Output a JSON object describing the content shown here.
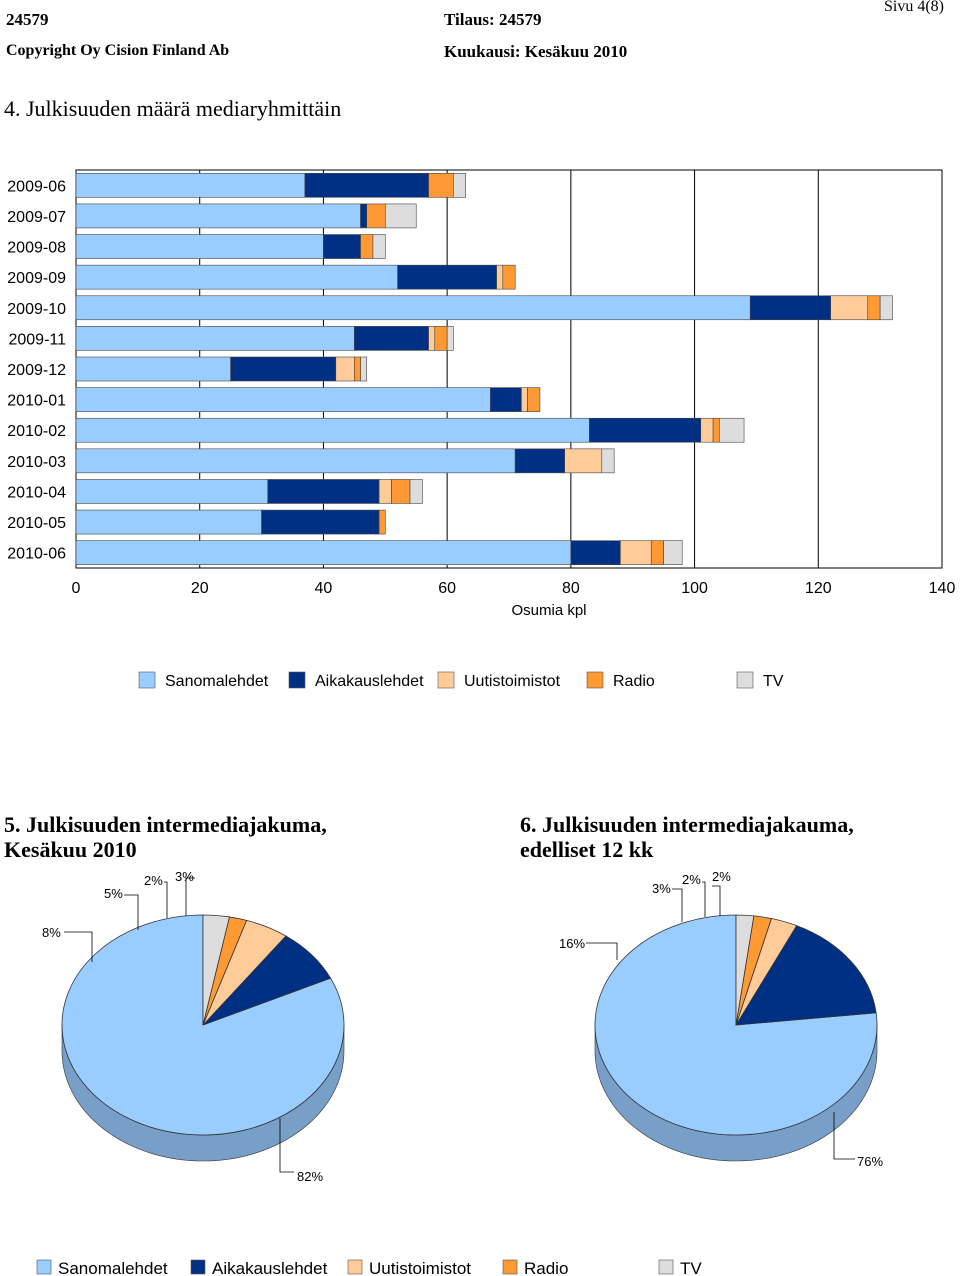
{
  "header": {
    "report_id": "24579",
    "order": "Tilaus: 24579",
    "page": "Sivu 4(8)",
    "copyright": "Copyright Oy Cision Finland Ab",
    "month": "Kuukausi: Kesäkuu 2010"
  },
  "section4": {
    "title": "4. Julkisuuden määrä mediaryhmittäin"
  },
  "section5": {
    "title_line1": "5. Julkisuuden intermediajakuma,",
    "title_line2": "Kesäkuu 2010"
  },
  "section6": {
    "title_line1": "6. Julkisuuden intermediajakauma,",
    "title_line2": "edelliset 12 kk"
  },
  "colors": {
    "Sanomalehdet": "#99ccff",
    "Aikakauslehdet": "#003083",
    "Uutistoimistot": "#ffcc99",
    "Radio": "#ff9933",
    "TV": "#dddddd"
  },
  "chart_data": [
    {
      "type": "bar",
      "orientation": "horizontal",
      "stacked": true,
      "title": "4. Julkisuuden määrä mediaryhmittäin",
      "xlabel": "Osumia kpl",
      "ylabel": "",
      "xlim": [
        0,
        140
      ],
      "xticks": [
        0,
        20,
        40,
        60,
        80,
        100,
        120,
        140
      ],
      "categories": [
        "2009-06",
        "2009-07",
        "2009-08",
        "2009-09",
        "2009-10",
        "2009-11",
        "2009-12",
        "2010-01",
        "2010-02",
        "2010-03",
        "2010-04",
        "2010-05",
        "2010-06"
      ],
      "series": [
        {
          "name": "Sanomalehdet",
          "values": [
            37,
            46,
            40,
            52,
            109,
            45,
            25,
            67,
            83,
            71,
            31,
            30,
            80
          ]
        },
        {
          "name": "Aikakauslehdet",
          "values": [
            20,
            1,
            6,
            16,
            13,
            12,
            17,
            5,
            18,
            8,
            18,
            19,
            8
          ]
        },
        {
          "name": "Uutistoimistot",
          "values": [
            0,
            0,
            0,
            1,
            6,
            1,
            3,
            1,
            2,
            6,
            2,
            0,
            5
          ]
        },
        {
          "name": "Radio",
          "values": [
            4,
            3,
            2,
            2,
            2,
            2,
            1,
            2,
            1,
            0,
            3,
            1,
            2
          ]
        },
        {
          "name": "TV",
          "values": [
            2,
            5,
            2,
            0,
            2,
            1,
            1,
            0,
            4,
            2,
            2,
            0,
            3
          ]
        }
      ],
      "legend": [
        "Sanomalehdet",
        "Aikakauslehdet",
        "Uutistoimistot",
        "Radio",
        "TV"
      ],
      "grid": true
    },
    {
      "type": "pie",
      "title": "5. Julkisuuden intermediajakuma, Kesäkuu 2010",
      "categories": [
        "Sanomalehdet",
        "Aikakauslehdet",
        "Uutistoimistot",
        "Radio",
        "TV"
      ],
      "values": [
        82,
        8,
        5,
        2,
        3
      ],
      "labels": [
        "82%",
        "8%",
        "5%",
        "2%",
        "3%"
      ]
    },
    {
      "type": "pie",
      "title": "6. Julkisuuden intermediajakauma, edelliset 12 kk",
      "categories": [
        "Sanomalehdet",
        "Aikakauslehdet",
        "Uutistoimistot",
        "Radio",
        "TV"
      ],
      "values": [
        76,
        16,
        3,
        2,
        2
      ],
      "labels": [
        "76%",
        "16%",
        "3%",
        "2%",
        "2%"
      ]
    }
  ],
  "bottom_legend": [
    "Sanomalehdet",
    "Aikakauslehdet",
    "Uutistoimistot",
    "Radio",
    "TV"
  ]
}
